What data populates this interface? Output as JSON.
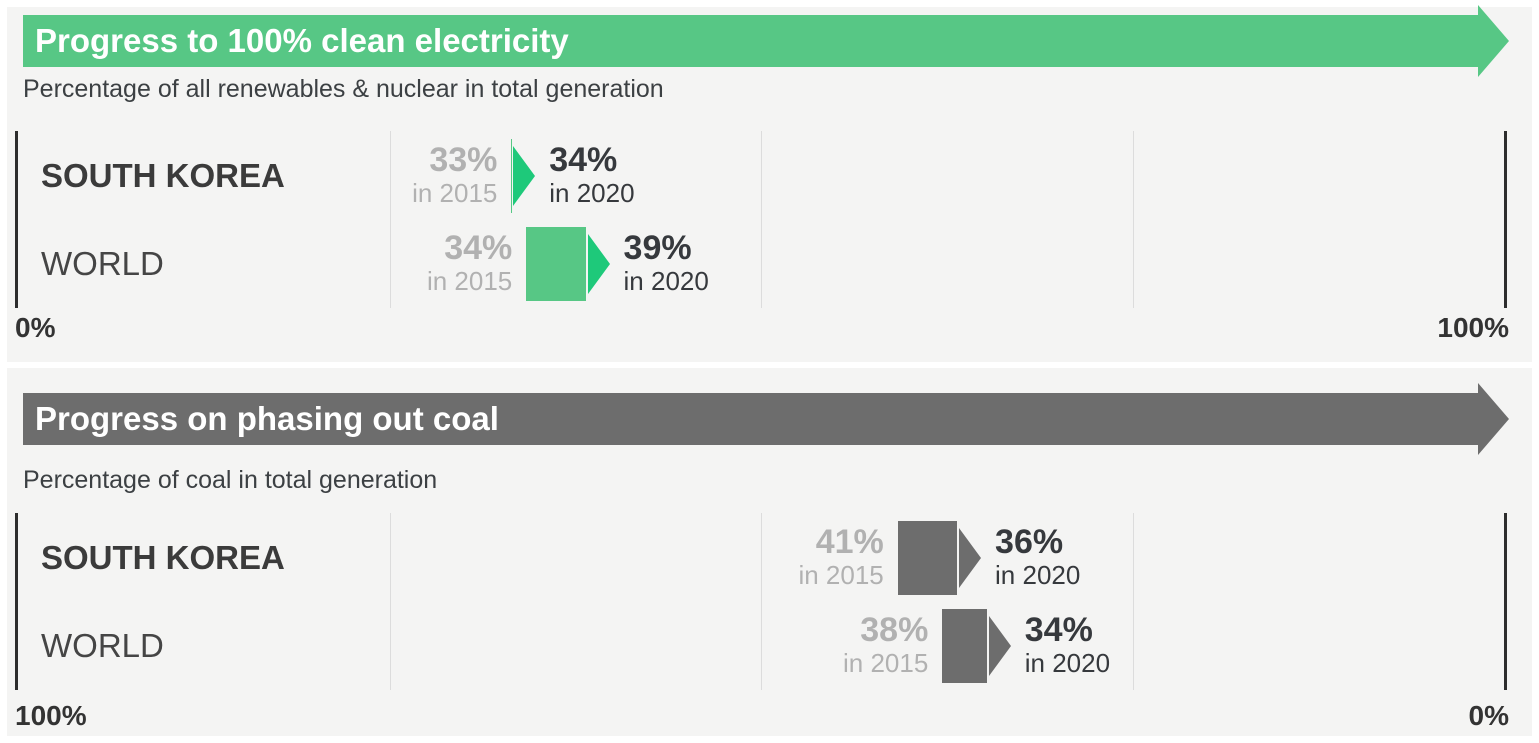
{
  "theme": {
    "page_background": "#ffffff",
    "panel_background": "#f4f4f3",
    "banner_text_color": "#ffffff",
    "subtitle_text_color": "#3c4043",
    "axis_line_color": "#2d2d2d",
    "gridline_color": "#dcdcdc",
    "axis_label_text_color": "#333333",
    "category_text_color": "#454545",
    "value_2015_text_color": "#b1b1b1",
    "value_2020_text_color": "#36393d"
  },
  "chart_data": [
    {
      "type": "bar",
      "variant": "horizontal-transition-arrows",
      "title": "Progress to 100% clean electricity",
      "subtitle": "Percentage of all renewables & nuclear in total generation",
      "categories": [
        "SOUTH KOREA",
        "WORLD"
      ],
      "series": [
        {
          "name": "in 2015",
          "values": [
            33,
            34
          ]
        },
        {
          "name": "in 2020",
          "values": [
            34,
            39
          ]
        }
      ],
      "value_labels": {
        "from": [
          "33%",
          "34%"
        ],
        "to": [
          "34%",
          "39%"
        ]
      },
      "xlim": [
        0,
        100
      ],
      "axis_reversed": false,
      "axis_tick_labels": {
        "left": "0%",
        "right": "100%"
      },
      "gridlines_pct": [
        25,
        50,
        75
      ],
      "legend": "none",
      "colors": {
        "banner": "#57c785",
        "arrow_body": "#57c785",
        "arrow_head": "#1ec97a"
      }
    },
    {
      "type": "bar",
      "variant": "horizontal-transition-arrows",
      "title": "Progress on phasing out coal",
      "subtitle": "Percentage of coal in total generation",
      "categories": [
        "SOUTH KOREA",
        "WORLD"
      ],
      "series": [
        {
          "name": "in 2015",
          "values": [
            41,
            38
          ]
        },
        {
          "name": "in 2020",
          "values": [
            36,
            34
          ]
        }
      ],
      "value_labels": {
        "from": [
          "41%",
          "38%"
        ],
        "to": [
          "36%",
          "34%"
        ]
      },
      "xlim": [
        0,
        100
      ],
      "axis_reversed": true,
      "axis_tick_labels": {
        "left": "100%",
        "right": "0%"
      },
      "gridlines_pct": [
        25,
        50,
        75
      ],
      "legend": "none",
      "colors": {
        "banner": "#6d6d6d",
        "arrow_body": "#6d6d6d",
        "arrow_head": "#6d6d6d"
      }
    }
  ]
}
